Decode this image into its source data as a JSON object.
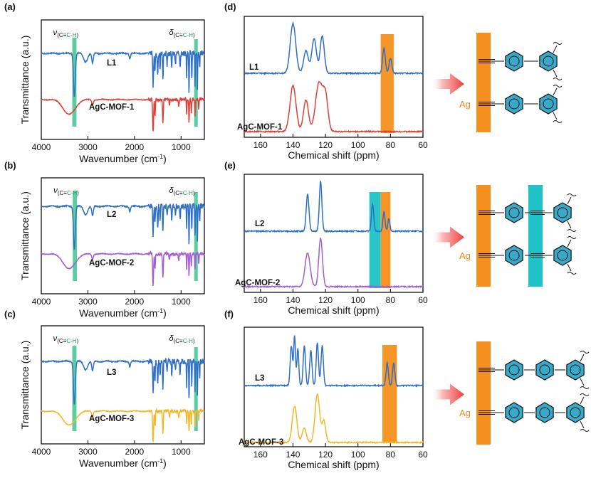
{
  "figure": {
    "arrow_color": "#ee3b3b",
    "ring_color": "#39a9c9",
    "ag_label": "Ag",
    "ag_color": "#f08a1a"
  },
  "chart_data": [
    {
      "id": "a",
      "type": "line",
      "panel_label": "(a)",
      "xlabel": "Wavenumber (cm",
      "xlabel_sup": "-1",
      "xlabel_close": ")",
      "ylabel": "Transmittance (a.u.)",
      "xlim": [
        4000,
        500
      ],
      "x_reversed": true,
      "xticks": [
        "4000",
        "3000",
        "2000",
        "1000"
      ],
      "xtick_values": [
        4000,
        3000,
        2000,
        1000
      ],
      "bands": [
        {
          "center": 3290,
          "width": 90,
          "color": "#3fc48f",
          "label": "ν",
          "sub_a": "(C≡",
          "sub_b": "C-H",
          "sub_c": ")"
        },
        {
          "center": 680,
          "width": 50,
          "color": "#3fc48f",
          "label": "δ",
          "sub_a": "(C≡",
          "sub_b": "C-H",
          "sub_c": ")"
        }
      ],
      "series": [
        {
          "name": "L1",
          "color": "#2f6fc6",
          "kind": "ir_ligand"
        },
        {
          "name": "AgC-MOF-1",
          "color": "#d9413a",
          "kind": "ir_mof"
        }
      ]
    },
    {
      "id": "b",
      "type": "line",
      "panel_label": "(b)",
      "xlabel": "Wavenumber (cm",
      "xlabel_sup": "-1",
      "xlabel_close": ")",
      "ylabel": "Transmittance (a.u.)",
      "xlim": [
        4000,
        500
      ],
      "x_reversed": true,
      "xticks": [
        "4000",
        "3000",
        "2000",
        "1000"
      ],
      "xtick_values": [
        4000,
        3000,
        2000,
        1000
      ],
      "bands": [
        {
          "center": 3280,
          "width": 90,
          "color": "#3fc48f",
          "label": "ν",
          "sub_a": "(C≡",
          "sub_b": "C-H",
          "sub_c": ")"
        },
        {
          "center": 680,
          "width": 50,
          "color": "#3fc48f",
          "label": "δ",
          "sub_a": "(C≡",
          "sub_b": "C-H",
          "sub_c": ")"
        }
      ],
      "series": [
        {
          "name": "L2",
          "color": "#2f6fc6",
          "kind": "ir_ligand"
        },
        {
          "name": "AgC-MOF-2",
          "color": "#a35ed0",
          "kind": "ir_mof"
        }
      ]
    },
    {
      "id": "c",
      "type": "line",
      "panel_label": "(c)",
      "xlabel": "Wavenumber (cm",
      "xlabel_sup": "-1",
      "xlabel_close": ")",
      "ylabel": "Transmittance (a.u.)",
      "xlim": [
        4000,
        500
      ],
      "x_reversed": true,
      "xticks": [
        "4000",
        "3000",
        "2000",
        "1000"
      ],
      "xtick_values": [
        4000,
        3000,
        2000,
        1000
      ],
      "bands": [
        {
          "center": 3290,
          "width": 90,
          "color": "#3fc48f",
          "label": "ν",
          "sub_a": "(C≡",
          "sub_b": "C-H",
          "sub_c": ")"
        },
        {
          "center": 680,
          "width": 50,
          "color": "#3fc48f",
          "label": "δ",
          "sub_a": "(C≡",
          "sub_b": "C-H",
          "sub_c": ")"
        }
      ],
      "series": [
        {
          "name": "L3",
          "color": "#2f6fc6",
          "kind": "ir_ligand"
        },
        {
          "name": "AgC-MOF-3",
          "color": "#f0b82a",
          "kind": "ir_mof"
        }
      ]
    },
    {
      "id": "d",
      "type": "line",
      "panel_label": "(d)",
      "xlabel": "Chemical shift (ppm)",
      "xlim": [
        170,
        60
      ],
      "x_reversed": true,
      "xticks": [
        "160",
        "140",
        "120",
        "100",
        "80",
        "60"
      ],
      "xtick_values": [
        160,
        140,
        120,
        100,
        80,
        60
      ],
      "bands": [
        {
          "from": 86,
          "to": 78,
          "color": "#f5901e"
        }
      ],
      "series": [
        {
          "name": "L1",
          "color": "#2f6fc6",
          "peaks": [
            [
              140,
              1.0,
              2.4
            ],
            [
              132,
              0.45,
              2.0
            ],
            [
              127,
              0.7,
              2.0
            ],
            [
              122,
              0.75,
              1.8
            ],
            [
              84,
              0.5,
              1.2
            ],
            [
              80,
              0.3,
              1.2
            ]
          ]
        },
        {
          "name": "AgC-MOF-1",
          "color": "#d9413a",
          "peaks": [
            [
              140,
              0.95,
              2.6
            ],
            [
              132,
              0.65,
              2.2
            ],
            [
              124,
              1.0,
              3.0
            ],
            [
              120,
              0.7,
              2.2
            ]
          ]
        }
      ]
    },
    {
      "id": "e",
      "type": "line",
      "panel_label": "(e)",
      "xlabel": "Chemical shift (ppm)",
      "xlim": [
        170,
        60
      ],
      "x_reversed": true,
      "xticks": [
        "160",
        "140",
        "120",
        "100",
        "80",
        "60"
      ],
      "xtick_values": [
        160,
        140,
        120,
        100,
        80,
        60
      ],
      "bands": [
        {
          "from": 93,
          "to": 86,
          "color": "#1fc2c7"
        },
        {
          "from": 86,
          "to": 80,
          "color": "#f5901e"
        }
      ],
      "series": [
        {
          "name": "L2",
          "color": "#2f6fc6",
          "peaks": [
            [
              131,
              0.75,
              1.2
            ],
            [
              123,
              1.0,
              1.1
            ],
            [
              91,
              0.55,
              1.0
            ],
            [
              84,
              0.4,
              0.9
            ],
            [
              81,
              0.25,
              0.9
            ]
          ]
        },
        {
          "name": "AgC-MOF-2",
          "color": "#a35ed0",
          "peaks": [
            [
              131,
              0.7,
              2.2
            ],
            [
              123,
              1.0,
              1.6
            ]
          ]
        }
      ]
    },
    {
      "id": "f",
      "type": "line",
      "panel_label": "(f)",
      "xlabel": "Chemical shift (ppm)",
      "xlim": [
        170,
        60
      ],
      "x_reversed": true,
      "xticks": [
        "160",
        "140",
        "120",
        "100",
        "80",
        "60"
      ],
      "xtick_values": [
        160,
        140,
        120,
        100,
        80,
        60
      ],
      "bands": [
        {
          "from": 85,
          "to": 76,
          "color": "#f5901e"
        }
      ],
      "series": [
        {
          "name": "L3",
          "color": "#2f6fc6",
          "peaks": [
            [
              141,
              0.8,
              1.0
            ],
            [
              139,
              1.0,
              0.8
            ],
            [
              137,
              0.75,
              0.8
            ],
            [
              133,
              0.8,
              1.0
            ],
            [
              129,
              0.7,
              1.0
            ],
            [
              125,
              0.85,
              1.0
            ],
            [
              122,
              0.8,
              1.0
            ],
            [
              82,
              0.45,
              1.0
            ],
            [
              78,
              0.45,
              1.0
            ]
          ]
        },
        {
          "name": "AgC-MOF-3",
          "color": "#f0b82a",
          "peaks": [
            [
              139,
              0.75,
              2.0
            ],
            [
              133,
              0.3,
              1.8
            ],
            [
              125,
              1.0,
              2.0
            ],
            [
              121,
              0.45,
              1.6
            ]
          ]
        }
      ]
    }
  ]
}
